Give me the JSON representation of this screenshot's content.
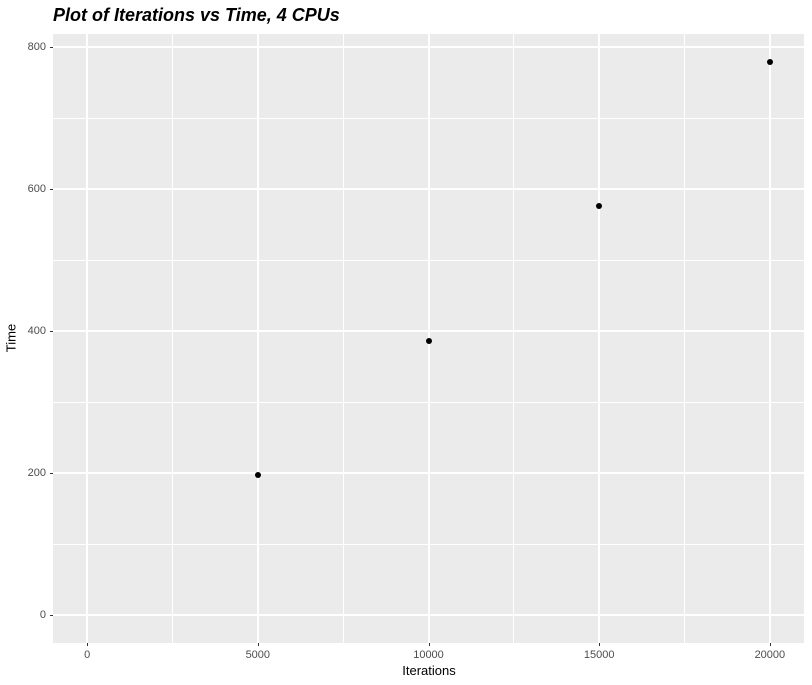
{
  "chart_data": {
    "type": "scatter",
    "title": "Plot of Iterations vs Time, 4 CPUs",
    "xlabel": "Iterations",
    "ylabel": "Time",
    "points": [
      {
        "x": 5000,
        "y": 197
      },
      {
        "x": 10000,
        "y": 387
      },
      {
        "x": 15000,
        "y": 577
      },
      {
        "x": 20000,
        "y": 779
      }
    ],
    "xlim": [
      -1000,
      21000
    ],
    "ylim": [
      -39,
      819
    ],
    "x_major_ticks": [
      0,
      5000,
      10000,
      15000,
      20000
    ],
    "y_major_ticks": [
      0,
      200,
      400,
      600,
      800
    ],
    "x_minor_ticks": [
      2500,
      7500,
      12500,
      17500
    ],
    "y_minor_ticks": [
      100,
      300,
      500,
      700
    ],
    "grid": "on",
    "legend": "none",
    "style": {
      "panel_background": "#EBEBEB",
      "grid_color": "#FFFFFF",
      "point_color": "#000000",
      "tick_label_color": "#4D4D4D",
      "tick_mark_color": "#333333",
      "title_color": "#000000",
      "axis_label_color": "#000000"
    }
  }
}
